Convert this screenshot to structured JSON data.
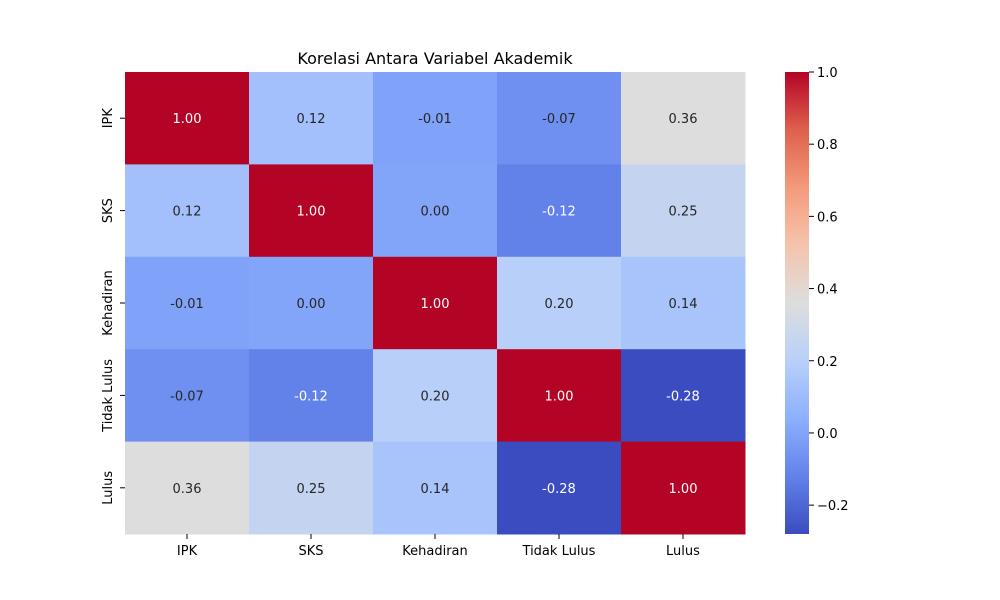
{
  "chart_data": {
    "type": "heatmap",
    "title": "Korelasi Antara Variabel Akademik",
    "x_categories": [
      "IPK",
      "SKS",
      "Kehadiran",
      "Tidak Lulus",
      "Lulus"
    ],
    "y_categories": [
      "IPK",
      "SKS",
      "Kehadiran",
      "Tidak Lulus",
      "Lulus"
    ],
    "values": [
      [
        1.0,
        0.12,
        -0.01,
        -0.07,
        0.36
      ],
      [
        0.12,
        1.0,
        0.0,
        -0.12,
        0.25
      ],
      [
        -0.01,
        0.0,
        1.0,
        0.2,
        0.14
      ],
      [
        -0.07,
        -0.12,
        0.2,
        1.0,
        -0.28
      ],
      [
        0.36,
        0.25,
        0.14,
        -0.28,
        1.0
      ]
    ],
    "cell_labels": [
      [
        "1.00",
        "0.12",
        "-0.01",
        "-0.07",
        "0.36"
      ],
      [
        "0.12",
        "1.00",
        "0.00",
        "-0.12",
        "0.25"
      ],
      [
        "-0.01",
        "0.00",
        "1.00",
        "0.20",
        "0.14"
      ],
      [
        "-0.07",
        "-0.12",
        "0.20",
        "1.00",
        "-0.28"
      ],
      [
        "0.36",
        "0.25",
        "0.14",
        "-0.28",
        "1.00"
      ]
    ],
    "colormap": "coolwarm",
    "colorbar": {
      "range": [
        -0.28,
        1.0
      ],
      "ticks": [
        -0.2,
        0.0,
        0.2,
        0.4,
        0.6,
        0.8,
        1.0
      ],
      "tick_labels": [
        "−0.2",
        "0.0",
        "0.2",
        "0.4",
        "0.6",
        "0.8",
        "1.0"
      ]
    }
  }
}
